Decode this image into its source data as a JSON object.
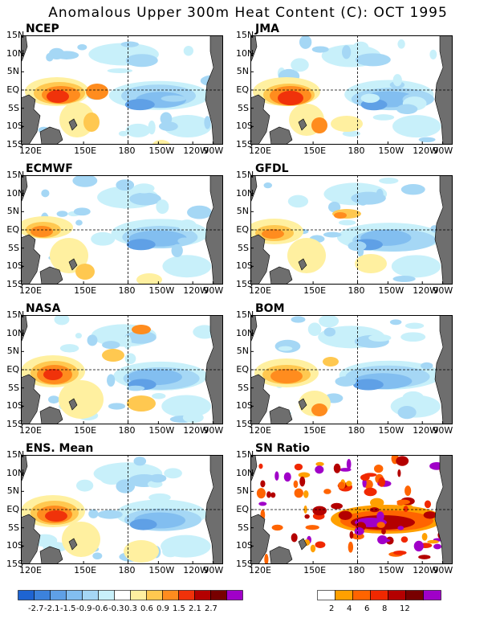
{
  "title": "Anomalous Upper 300m Heat Content (C): OCT 1995",
  "x_ticks": [
    "120E",
    "150E",
    "180",
    "150W",
    "120W",
    "90W"
  ],
  "y_ticks": [
    "15N",
    "10N",
    "5N",
    "EQ",
    "5S",
    "10S",
    "15S"
  ],
  "panels": [
    {
      "label": "NCEP"
    },
    {
      "label": "JMA"
    },
    {
      "label": "ECMWF"
    },
    {
      "label": "GFDL"
    },
    {
      "label": "NASA"
    },
    {
      "label": "BOM"
    },
    {
      "label": "ENS. Mean"
    },
    {
      "label": "SN Ratio"
    }
  ],
  "colorbar_anomaly": {
    "labels": [
      "-2.7",
      "-2.1",
      "-1.5",
      "-0.9",
      "-0.6",
      "-0.3",
      "0.3",
      "0.6",
      "0.9",
      "1.5",
      "2.1",
      "2.7"
    ],
    "colors": [
      "#1e64d2",
      "#3c82dc",
      "#5fa0e6",
      "#82bef0",
      "#a5d7f5",
      "#c8f0fa",
      "#ffffff",
      "#fff0a0",
      "#ffc850",
      "#ff8c1e",
      "#f0320a",
      "#b40000",
      "#780000",
      "#a000c8"
    ]
  },
  "colorbar_sn": {
    "labels": [
      "2",
      "4",
      "6",
      "8",
      "12"
    ],
    "colors": [
      "#ffffff",
      "#ffa000",
      "#ff6400",
      "#f02800",
      "#b40000",
      "#780000",
      "#a000c8"
    ]
  }
}
